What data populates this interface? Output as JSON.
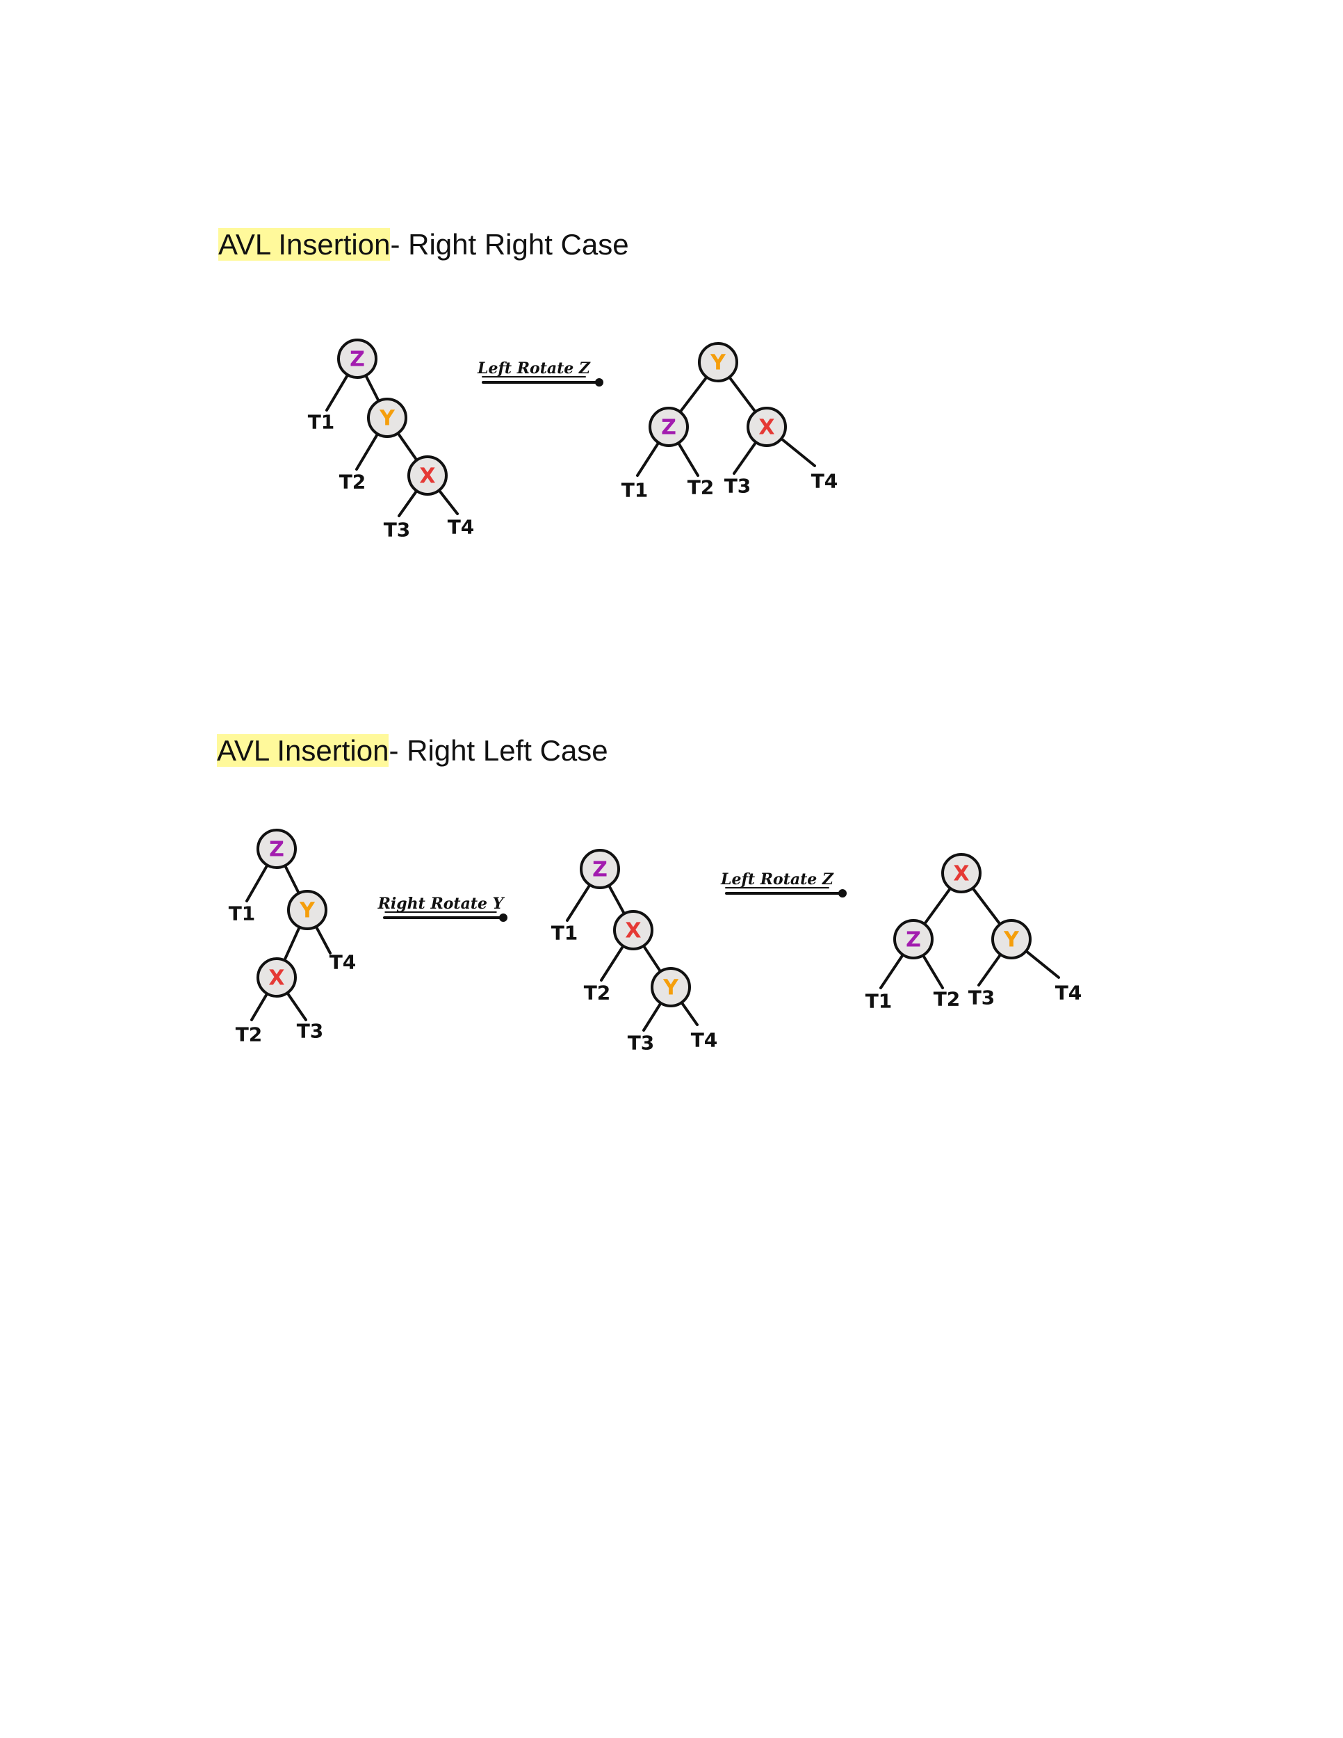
{
  "sections": [
    {
      "highlight": "AVL Insertion",
      "rest": "- Right Right Case",
      "arrows": [
        {
          "label": "Left Rotate Z"
        }
      ],
      "trees": [
        {
          "nodes": [
            "Z",
            "Y",
            "X"
          ],
          "subtrees": [
            "T1",
            "T2",
            "T3",
            "T4"
          ]
        },
        {
          "nodes": [
            "Y",
            "Z",
            "X"
          ],
          "subtrees": [
            "T1",
            "T2",
            "T3",
            "T4"
          ]
        }
      ]
    },
    {
      "highlight": "AVL Insertion",
      "rest": "- Right Left Case",
      "arrows": [
        {
          "label": "Right Rotate Y"
        },
        {
          "label": "Left Rotate Z"
        }
      ],
      "trees": [
        {
          "nodes": [
            "Z",
            "Y",
            "X"
          ],
          "subtrees": [
            "T1",
            "T4",
            "T2",
            "T3"
          ]
        },
        {
          "nodes": [
            "Z",
            "X",
            "Y"
          ],
          "subtrees": [
            "T1",
            "T2",
            "T3",
            "T4"
          ]
        },
        {
          "nodes": [
            "X",
            "Z",
            "Y"
          ],
          "subtrees": [
            "T1",
            "T2",
            "T3",
            "T4"
          ]
        }
      ]
    }
  ],
  "colors": {
    "Z": "#a21caf",
    "Y": "#f59e0b",
    "X": "#e53935",
    "highlight": "#fff99b",
    "node_fill": "#e7e5e4"
  }
}
